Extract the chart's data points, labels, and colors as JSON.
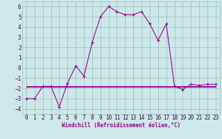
{
  "xlabel": "Windchill (Refroidissement éolien,°C)",
  "x": [
    0,
    1,
    2,
    3,
    4,
    5,
    6,
    7,
    8,
    9,
    10,
    11,
    12,
    13,
    14,
    15,
    16,
    17,
    18,
    19,
    20,
    21,
    22,
    23
  ],
  "y_main": [
    -3.0,
    -3.0,
    -1.8,
    -1.8,
    -3.8,
    -1.5,
    0.2,
    -0.8,
    2.5,
    5.0,
    6.0,
    5.5,
    5.2,
    5.2,
    5.5,
    4.3,
    2.7,
    4.3,
    -1.8,
    -2.1,
    -1.6,
    -1.7,
    -1.6,
    -1.6
  ],
  "y_flat1": [
    -1.8,
    -1.8,
    -1.8,
    -1.8,
    -1.8,
    -1.8,
    -1.8,
    -1.8,
    -1.8,
    -1.8,
    -1.8,
    -1.8,
    -1.8,
    -1.8,
    -1.8,
    -1.8,
    -1.8,
    -1.8,
    -1.8,
    -1.8,
    -1.8,
    -1.8,
    -1.8,
    -1.8
  ],
  "y_flat2": [
    -1.85,
    -1.85,
    -1.85,
    -1.85,
    -1.85,
    -1.85,
    -1.85,
    -1.85,
    -1.85,
    -1.85,
    -1.85,
    -1.85,
    -1.85,
    -1.85,
    -1.85,
    -1.85,
    -1.85,
    -1.85,
    -1.85,
    -1.85,
    -1.85,
    -1.85,
    -1.85,
    -1.85
  ],
  "y_flat3": [
    -1.75,
    -1.75,
    -1.75,
    -1.75,
    -1.75,
    -1.75,
    -1.75,
    -1.75,
    -1.75,
    -1.75,
    -1.75,
    -1.75,
    -1.75,
    -1.75,
    -1.75,
    -1.75,
    -1.75,
    -1.75,
    -1.75,
    -1.75,
    -1.75,
    -1.75,
    -1.75,
    -1.75
  ],
  "line_color": "#990099",
  "bg_color": "#cce8e8",
  "grid_color": "#99bbbb",
  "ylim": [
    -4.5,
    6.5
  ],
  "xlim": [
    -0.5,
    23.5
  ],
  "yticks": [
    -4,
    -3,
    -2,
    -1,
    0,
    1,
    2,
    3,
    4,
    5,
    6
  ],
  "xticks": [
    0,
    1,
    2,
    3,
    4,
    5,
    6,
    7,
    8,
    9,
    10,
    11,
    12,
    13,
    14,
    15,
    16,
    17,
    18,
    19,
    20,
    21,
    22,
    23
  ]
}
